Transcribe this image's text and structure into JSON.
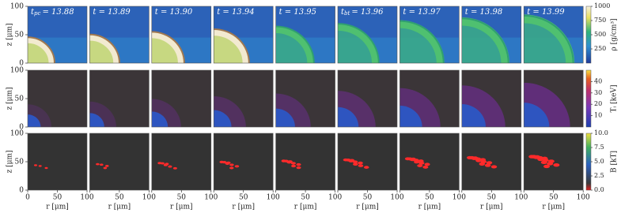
{
  "columns": [
    {
      "var": "t",
      "sub": "pc",
      "rest": "= 13.88"
    },
    {
      "var": "t = 13.89"
    },
    {
      "var": "t = 13.90"
    },
    {
      "var": "t = 13.94"
    },
    {
      "var": "t = 13.95"
    },
    {
      "var": "t",
      "sub": "bt",
      "rest": "= 13.96"
    },
    {
      "var": "t = 13.97"
    },
    {
      "var": "t = 13.98"
    },
    {
      "var": "t = 13.99"
    }
  ],
  "axes": {
    "xlabel": "r [μm]",
    "ylabel": "z [μm]",
    "xlim": [
      0,
      100
    ],
    "ylim": [
      0,
      100
    ],
    "xticks": [
      0,
      50,
      100
    ],
    "yticks": [
      0,
      50,
      100
    ]
  },
  "rows": [
    {
      "colorbar": {
        "label": "ρ [g/cm³]",
        "lim": [
          0,
          1000
        ],
        "ticks": [
          250,
          500,
          750,
          1000
        ]
      }
    },
    {
      "colorbar": {
        "label": "Tᵢ [keV]",
        "lim": [
          0,
          50
        ],
        "ticks": [
          10,
          20,
          30,
          40
        ]
      }
    },
    {
      "colorbar": {
        "label": "B [kT]",
        "lim": [
          0,
          10
        ],
        "ticks": [
          {
            "value": 0,
            "label": "0.0"
          },
          2.5,
          {
            "value": 5,
            "label": "5.0"
          },
          7.5,
          {
            "value": 10,
            "label": "10.0"
          }
        ]
      }
    }
  ]
}
